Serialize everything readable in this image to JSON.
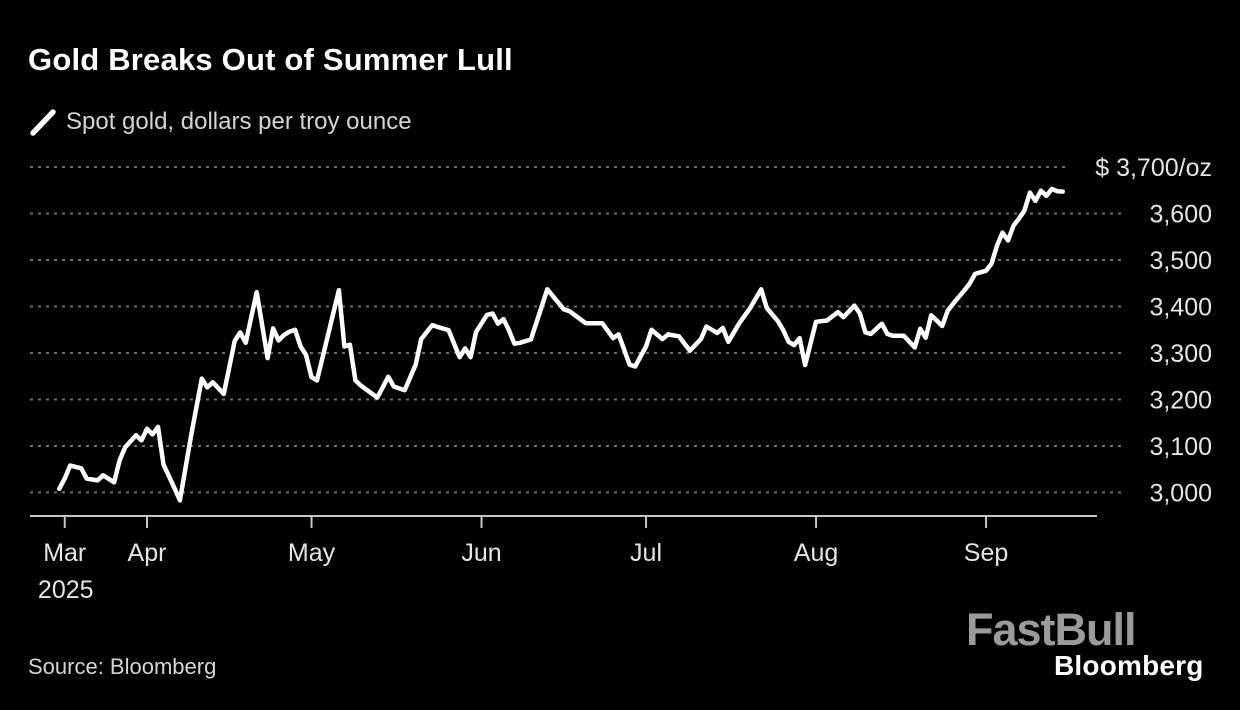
{
  "header": {
    "title": "Gold Breaks Out of Summer Lull",
    "legend_label": "Spot gold, dollars per troy ounce"
  },
  "footer": {
    "source": "Source: Bloomberg",
    "logo_primary": "FastBull",
    "logo_secondary": "Bloomberg"
  },
  "colors": {
    "background": "#000000",
    "line": "#ffffff",
    "grid": "#6e6e6e",
    "axis": "#c9c6c0",
    "axis_text": "#e8e5e1",
    "subtitle_text": "#d8d5d0",
    "logo_gray": "#9b9b9b"
  },
  "chart_data": {
    "type": "line",
    "title": "Gold Breaks Out of Summer Lull",
    "series_label": "Spot gold, dollars per troy ounce",
    "unit": "dollars per troy ounce",
    "grid": "dotted-horizontal",
    "legend_position": "top-left",
    "ylim": [
      2950,
      3730
    ],
    "y_axis": {
      "side": "right",
      "ticks": [
        {
          "value": 3700,
          "label": "$ 3,700/oz"
        },
        {
          "value": 3600,
          "label": "3,600"
        },
        {
          "value": 3500,
          "label": "3,500"
        },
        {
          "value": 3400,
          "label": "3,400"
        },
        {
          "value": 3300,
          "label": "3,300"
        },
        {
          "value": 3200,
          "label": "3,200"
        },
        {
          "value": 3100,
          "label": "3,100"
        },
        {
          "value": 3000,
          "label": "3,000"
        }
      ]
    },
    "x_axis": {
      "ticks": [
        {
          "label": "Mar",
          "date": "2025-03-17",
          "sub_label": "2025"
        },
        {
          "label": "Apr",
          "date": "2025-04-01"
        },
        {
          "label": "May",
          "date": "2025-05-01"
        },
        {
          "label": "Jun",
          "date": "2025-06-01"
        },
        {
          "label": "Jul",
          "date": "2025-07-01"
        },
        {
          "label": "Aug",
          "date": "2025-08-01"
        },
        {
          "label": "Sep",
          "date": "2025-09-01"
        }
      ]
    },
    "points": [
      [
        "2025-03-16",
        3008
      ],
      [
        "2025-03-17",
        3030
      ],
      [
        "2025-03-18",
        3058
      ],
      [
        "2025-03-20",
        3052
      ],
      [
        "2025-03-21",
        3030
      ],
      [
        "2025-03-23",
        3026
      ],
      [
        "2025-03-24",
        3037
      ],
      [
        "2025-03-26",
        3022
      ],
      [
        "2025-03-27",
        3069
      ],
      [
        "2025-03-28",
        3097
      ],
      [
        "2025-03-30",
        3123
      ],
      [
        "2025-03-31",
        3112
      ],
      [
        "2025-04-01",
        3137
      ],
      [
        "2025-04-02",
        3125
      ],
      [
        "2025-04-03",
        3141
      ],
      [
        "2025-04-04",
        3060
      ],
      [
        "2025-04-06",
        3010
      ],
      [
        "2025-04-07",
        2983
      ],
      [
        "2025-04-09",
        3120
      ],
      [
        "2025-04-11",
        3245
      ],
      [
        "2025-04-12",
        3226
      ],
      [
        "2025-04-13",
        3237
      ],
      [
        "2025-04-15",
        3212
      ],
      [
        "2025-04-17",
        3326
      ],
      [
        "2025-04-18",
        3344
      ],
      [
        "2025-04-19",
        3322
      ],
      [
        "2025-04-21",
        3431
      ],
      [
        "2025-04-23",
        3289
      ],
      [
        "2025-04-24",
        3353
      ],
      [
        "2025-04-25",
        3327
      ],
      [
        "2025-04-26",
        3339
      ],
      [
        "2025-04-27",
        3346
      ],
      [
        "2025-04-28",
        3350
      ],
      [
        "2025-04-29",
        3314
      ],
      [
        "2025-04-30",
        3296
      ],
      [
        "2025-05-01",
        3248
      ],
      [
        "2025-05-02",
        3241
      ],
      [
        "2025-05-06",
        3435
      ],
      [
        "2025-05-07",
        3314
      ],
      [
        "2025-05-08",
        3318
      ],
      [
        "2025-05-09",
        3241
      ],
      [
        "2025-05-10",
        3230
      ],
      [
        "2025-05-13",
        3204
      ],
      [
        "2025-05-15",
        3249
      ],
      [
        "2025-05-16",
        3228
      ],
      [
        "2025-05-18",
        3220
      ],
      [
        "2025-05-20",
        3275
      ],
      [
        "2025-05-21",
        3330
      ],
      [
        "2025-05-23",
        3360
      ],
      [
        "2025-05-24",
        3356
      ],
      [
        "2025-05-26",
        3349
      ],
      [
        "2025-05-28",
        3291
      ],
      [
        "2025-05-29",
        3310
      ],
      [
        "2025-05-30",
        3291
      ],
      [
        "2025-05-31",
        3345
      ],
      [
        "2025-06-02",
        3382
      ],
      [
        "2025-06-03",
        3385
      ],
      [
        "2025-06-04",
        3363
      ],
      [
        "2025-06-05",
        3373
      ],
      [
        "2025-06-06",
        3349
      ],
      [
        "2025-06-07",
        3320
      ],
      [
        "2025-06-08",
        3322
      ],
      [
        "2025-06-10",
        3329
      ],
      [
        "2025-06-13",
        3437
      ],
      [
        "2025-06-16",
        3394
      ],
      [
        "2025-06-17",
        3390
      ],
      [
        "2025-06-20",
        3364
      ],
      [
        "2025-06-23",
        3364
      ],
      [
        "2025-06-25",
        3332
      ],
      [
        "2025-06-26",
        3340
      ],
      [
        "2025-06-28",
        3275
      ],
      [
        "2025-06-29",
        3271
      ],
      [
        "2025-07-01",
        3314
      ],
      [
        "2025-07-02",
        3350
      ],
      [
        "2025-07-04",
        3330
      ],
      [
        "2025-07-05",
        3340
      ],
      [
        "2025-07-07",
        3336
      ],
      [
        "2025-07-09",
        3305
      ],
      [
        "2025-07-11",
        3330
      ],
      [
        "2025-07-12",
        3357
      ],
      [
        "2025-07-14",
        3343
      ],
      [
        "2025-07-15",
        3354
      ],
      [
        "2025-07-16",
        3324
      ],
      [
        "2025-07-18",
        3364
      ],
      [
        "2025-07-20",
        3397
      ],
      [
        "2025-07-22",
        3437
      ],
      [
        "2025-07-23",
        3397
      ],
      [
        "2025-07-25",
        3369
      ],
      [
        "2025-07-26",
        3350
      ],
      [
        "2025-07-27",
        3324
      ],
      [
        "2025-07-28",
        3317
      ],
      [
        "2025-07-29",
        3332
      ],
      [
        "2025-07-30",
        3274
      ],
      [
        "2025-08-01",
        3367
      ],
      [
        "2025-08-03",
        3370
      ],
      [
        "2025-08-05",
        3388
      ],
      [
        "2025-08-06",
        3377
      ],
      [
        "2025-08-08",
        3402
      ],
      [
        "2025-08-09",
        3385
      ],
      [
        "2025-08-10",
        3344
      ],
      [
        "2025-08-11",
        3341
      ],
      [
        "2025-08-13",
        3363
      ],
      [
        "2025-08-14",
        3341
      ],
      [
        "2025-08-15",
        3337
      ],
      [
        "2025-08-17",
        3337
      ],
      [
        "2025-08-19",
        3312
      ],
      [
        "2025-08-20",
        3352
      ],
      [
        "2025-08-21",
        3333
      ],
      [
        "2025-08-22",
        3381
      ],
      [
        "2025-08-23",
        3370
      ],
      [
        "2025-08-24",
        3358
      ],
      [
        "2025-08-25",
        3391
      ],
      [
        "2025-08-26",
        3406
      ],
      [
        "2025-08-28",
        3434
      ],
      [
        "2025-08-29",
        3449
      ],
      [
        "2025-08-30",
        3470
      ],
      [
        "2025-09-01",
        3477
      ],
      [
        "2025-09-02",
        3492
      ],
      [
        "2025-09-03",
        3531
      ],
      [
        "2025-09-04",
        3559
      ],
      [
        "2025-09-05",
        3542
      ],
      [
        "2025-09-06",
        3574
      ],
      [
        "2025-09-07",
        3589
      ],
      [
        "2025-09-08",
        3606
      ],
      [
        "2025-09-09",
        3645
      ],
      [
        "2025-09-10",
        3627
      ],
      [
        "2025-09-11",
        3649
      ],
      [
        "2025-09-12",
        3638
      ],
      [
        "2025-09-13",
        3653
      ],
      [
        "2025-09-14",
        3648
      ],
      [
        "2025-09-15",
        3647
      ]
    ]
  }
}
